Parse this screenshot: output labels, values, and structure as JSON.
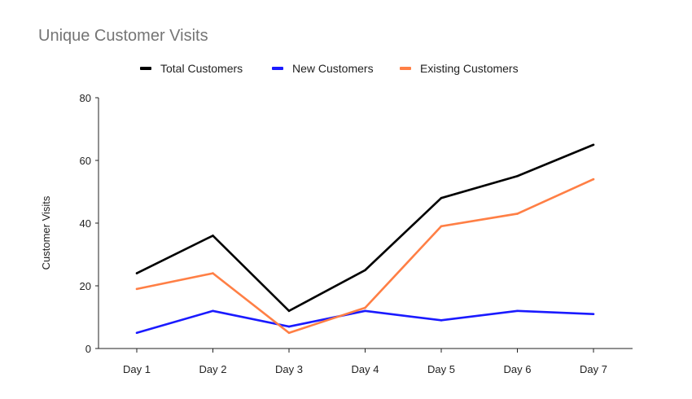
{
  "chart_data": {
    "type": "line",
    "title": "Unique Customer Visits",
    "xlabel": "",
    "ylabel": "Customer Visits",
    "categories": [
      "Day 1",
      "Day 2",
      "Day 3",
      "Day 4",
      "Day 5",
      "Day 6",
      "Day 7"
    ],
    "ylim": [
      0,
      80
    ],
    "yticks": [
      "0",
      "20",
      "40",
      "60",
      "80"
    ],
    "grid": false,
    "legend_position": "top",
    "series": [
      {
        "name": "Total Customers",
        "color": "#000000",
        "values": [
          24,
          36,
          12,
          25,
          48,
          55,
          65
        ]
      },
      {
        "name": "New Customers",
        "color": "#1a1aff",
        "values": [
          5,
          12,
          7,
          12,
          9,
          12,
          11
        ]
      },
      {
        "name": "Existing Customers",
        "color": "#ff7f45",
        "values": [
          19,
          24,
          5,
          13,
          39,
          43,
          54
        ]
      }
    ]
  }
}
